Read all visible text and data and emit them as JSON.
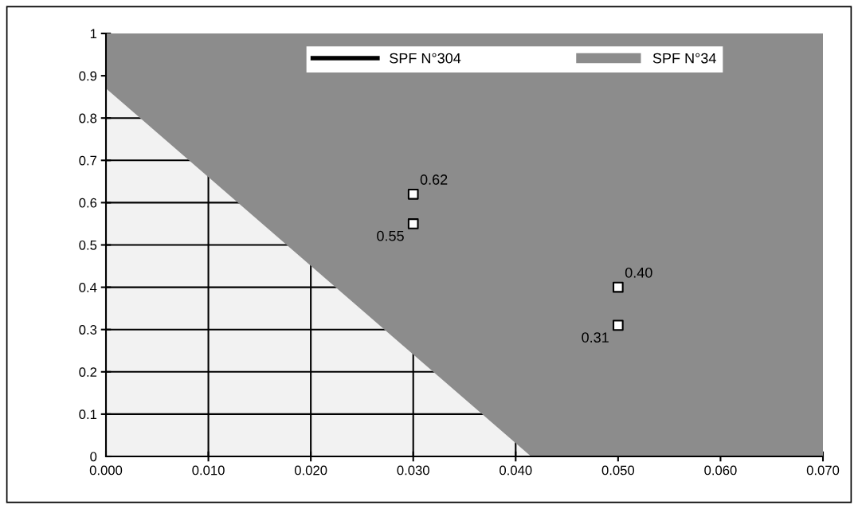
{
  "chart_data": {
    "type": "scatter",
    "xlim": [
      0,
      0.07
    ],
    "xticks": [
      {
        "value": 0,
        "label": "0.000"
      },
      {
        "value": 0.01,
        "label": "0.010"
      },
      {
        "value": 0.02,
        "label": "0.020"
      },
      {
        "value": 0.03,
        "label": "0.030"
      },
      {
        "value": 0.04,
        "label": "0.040"
      },
      {
        "value": 0.05,
        "label": "0.050"
      },
      {
        "value": 0.06,
        "label": "0.060"
      },
      {
        "value": 0.07,
        "label": "0.070"
      }
    ],
    "ylim": [
      0,
      1
    ],
    "yticks": [
      0,
      0.1,
      0.2,
      0.3,
      0.4,
      0.5,
      0.6,
      0.7,
      0.8,
      0.9,
      1
    ],
    "grid": true,
    "legend": "top",
    "stacked": true,
    "series": [
      {
        "name": "SPF N°304",
        "type": "line",
        "color": "#000000"
      },
      {
        "type": "area",
        "color": "#f2f2f2",
        "x": [
          0,
          0.0415,
          0.07
        ],
        "values": [
          0.87,
          0,
          0
        ]
      },
      {
        "name": "SPF N°34",
        "type": "area",
        "color": "#8c8c8c",
        "x": [
          0,
          0.0415,
          0.07
        ],
        "values": [
          0.13,
          1,
          1
        ]
      },
      {
        "color": "#000000",
        "marker": "square",
        "x": [
          0.03,
          0.03,
          0.05,
          0.05
        ],
        "values": [
          0.62,
          0.55,
          0.4,
          0.31
        ],
        "value_labels": [
          "0.62",
          "0.55",
          "0.40",
          "0.31"
        ]
      }
    ]
  }
}
